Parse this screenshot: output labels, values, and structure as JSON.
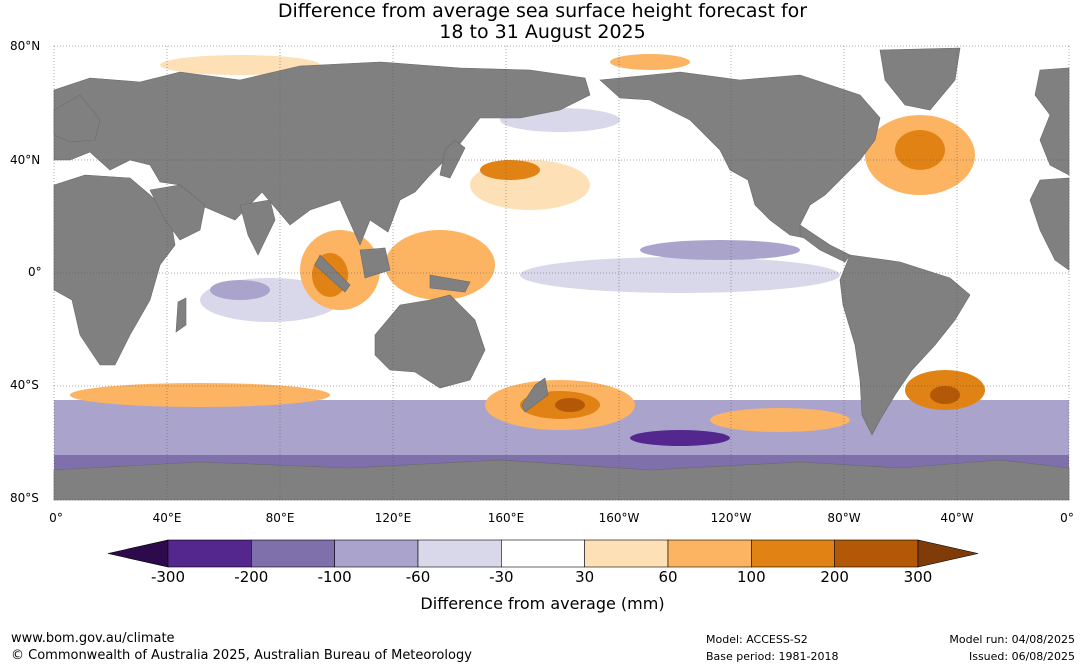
{
  "title": {
    "line1": "Difference from average sea surface height forecast for",
    "line2": "18 to 31 August 2025"
  },
  "map": {
    "lat_labels": [
      "80°N",
      "40°N",
      "0°",
      "40°S",
      "80°S"
    ],
    "lon_labels": [
      "0°",
      "40°E",
      "80°E",
      "120°E",
      "160°E",
      "160°W",
      "120°W",
      "80°W",
      "40°W",
      "0°"
    ],
    "land_color": "#808080",
    "ocean_color": "#ffffff"
  },
  "legend": {
    "title": "Difference from average (mm)",
    "ticks": [
      "-300",
      "-200",
      "-100",
      "-60",
      "-30",
      "30",
      "60",
      "100",
      "200",
      "300"
    ],
    "colors": [
      "#2d0a4b",
      "#54278f",
      "#7f6faa",
      "#aaa4cc",
      "#d9d8eb",
      "#ffffff",
      "#fee0b6",
      "#fdb462",
      "#e08214",
      "#b35806",
      "#7f3b08"
    ]
  },
  "footer": {
    "website": "www.bom.gov.au/climate",
    "copyright": "© Commonwealth of Australia 2025, Australian Bureau of Meteorology",
    "model": "Model: ACCESS-S2",
    "base_period": "Base period: 1981-2018",
    "model_run": "Model run: 04/08/2025",
    "issued": "Issued: 06/08/2025"
  }
}
